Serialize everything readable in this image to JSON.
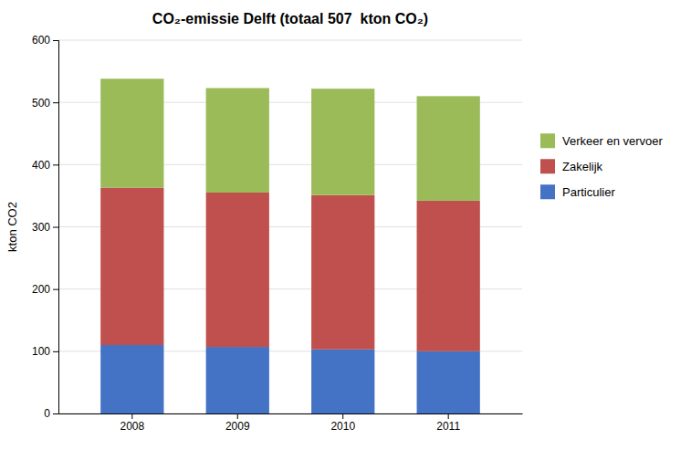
{
  "chart_data": {
    "type": "bar",
    "stacked": true,
    "title": "CO₂-emissie Delft (totaal 507  kton CO₂)",
    "ylabel": "kton CO2",
    "categories": [
      "2008",
      "2009",
      "2010",
      "2011"
    ],
    "series": [
      {
        "name": "Particulier",
        "color": "#4472C4",
        "values": [
          110,
          107,
          103,
          100
        ]
      },
      {
        "name": "Zakelijk",
        "color": "#C0504D",
        "values": [
          253,
          248,
          248,
          242
        ]
      },
      {
        "name": "Verkeer en vervoer",
        "color": "#9BBB59",
        "values": [
          175,
          168,
          171,
          168
        ]
      }
    ],
    "ylim": [
      0,
      600
    ],
    "yticks": [
      0,
      100,
      200,
      300,
      400,
      500,
      600
    ],
    "grid": true,
    "legend": "right"
  }
}
